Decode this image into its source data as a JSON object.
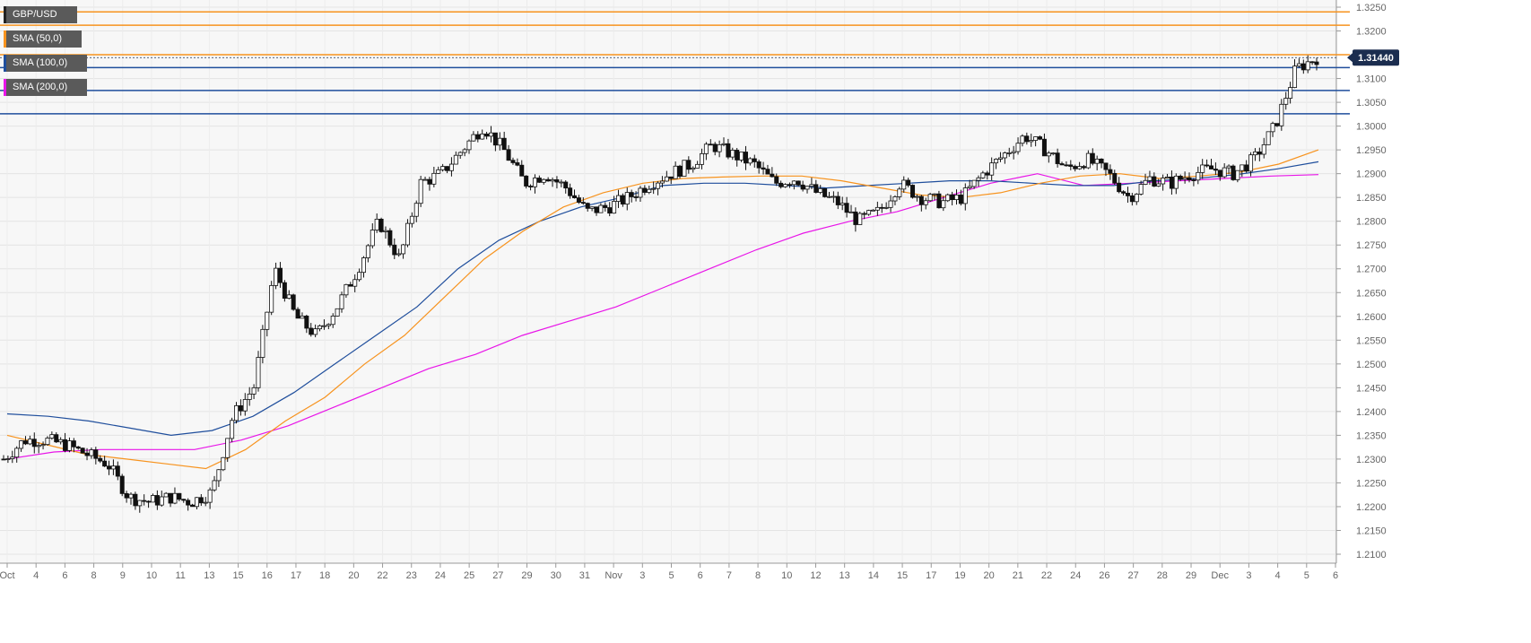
{
  "chart_data": {
    "type": "candlestick",
    "symbol": "GBP/USD",
    "legend": [
      {
        "label": "GBP/USD",
        "color": "#222222"
      },
      {
        "label": "SMA (50,0)",
        "color": "#f7931e"
      },
      {
        "label": "SMA (100,0)",
        "color": "#1f4e9c"
      },
      {
        "label": "SMA (200,0)",
        "color": "#e815e8"
      }
    ],
    "last_price_label": "1.31440",
    "last_price": 1.3144,
    "ylim": [
      1.2075,
      1.3265
    ],
    "y_ticks": [
      "1.3250",
      "1.3200",
      "1.3150",
      "1.3100",
      "1.3050",
      "1.3000",
      "1.2950",
      "1.2900",
      "1.2850",
      "1.2800",
      "1.2750",
      "1.2700",
      "1.2650",
      "1.2600",
      "1.2550",
      "1.2500",
      "1.2450",
      "1.2400",
      "1.2350",
      "1.2300",
      "1.2250",
      "1.2200",
      "1.2150",
      "1.2100"
    ],
    "x_ticks": [
      "Oct",
      "4",
      "6",
      "8",
      "9",
      "10",
      "11",
      "13",
      "15",
      "16",
      "17",
      "18",
      "20",
      "22",
      "23",
      "24",
      "25",
      "27",
      "29",
      "30",
      "31",
      "Nov",
      "3",
      "5",
      "6",
      "7",
      "8",
      "10",
      "12",
      "13",
      "14",
      "15",
      "17",
      "19",
      "20",
      "21",
      "22",
      "24",
      "26",
      "27",
      "28",
      "29",
      "Dec",
      "3",
      "4",
      "5",
      "6"
    ],
    "horizontal_levels": [
      {
        "value": 1.324,
        "color": "#f7931e"
      },
      {
        "value": 1.3212,
        "color": "#f7931e"
      },
      {
        "value": 1.315,
        "color": "#f7931e"
      },
      {
        "value": 1.3123,
        "color": "#1f4e9c"
      },
      {
        "value": 1.3075,
        "color": "#1f4e9c"
      },
      {
        "value": 1.3026,
        "color": "#1f4e9c"
      }
    ],
    "price_path": [
      1.23,
      1.234,
      1.234,
      1.233,
      1.231,
      1.229,
      1.222,
      1.221,
      1.222,
      1.221,
      1.223,
      1.239,
      1.245,
      1.27,
      1.26,
      1.256,
      1.262,
      1.27,
      1.28,
      1.272,
      1.288,
      1.29,
      1.295,
      1.3,
      1.295,
      1.288,
      1.29,
      1.287,
      1.282,
      1.283,
      1.285,
      1.288,
      1.29,
      1.292,
      1.296,
      1.294,
      1.292,
      1.288,
      1.289,
      1.286,
      1.284,
      1.28,
      1.282,
      1.288,
      1.285,
      1.284,
      1.285,
      1.29,
      1.294,
      1.298,
      1.295,
      1.291,
      1.293,
      1.29,
      1.285,
      1.289,
      1.288,
      1.29,
      1.291,
      1.29,
      1.293,
      1.3,
      1.312,
      1.3144
    ],
    "sma50": [
      1.235,
      1.233,
      1.231,
      1.23,
      1.229,
      1.228,
      1.232,
      1.238,
      1.243,
      1.25,
      1.256,
      1.264,
      1.272,
      1.278,
      1.283,
      1.286,
      1.288,
      1.289,
      1.2893,
      1.2895,
      1.2895,
      1.2885,
      1.287,
      1.2855,
      1.285,
      1.286,
      1.288,
      1.2895,
      1.29,
      1.289,
      1.2895,
      1.2903,
      1.292,
      1.295
    ],
    "sma100": [
      1.2395,
      1.239,
      1.238,
      1.2365,
      1.235,
      1.236,
      1.239,
      1.244,
      1.25,
      1.256,
      1.262,
      1.27,
      1.276,
      1.28,
      1.283,
      1.285,
      1.2875,
      1.288,
      1.288,
      1.2875,
      1.287,
      1.2875,
      1.288,
      1.2885,
      1.2885,
      1.288,
      1.2875,
      1.2875,
      1.2885,
      1.289,
      1.2898,
      1.291,
      1.2925
    ],
    "sma200": [
      1.23,
      1.2315,
      1.232,
      1.232,
      1.232,
      1.234,
      1.237,
      1.241,
      1.245,
      1.249,
      1.252,
      1.256,
      1.259,
      1.262,
      1.266,
      1.27,
      1.274,
      1.2775,
      1.28,
      1.282,
      1.285,
      1.288,
      1.29,
      1.2875,
      1.288,
      1.2885,
      1.289,
      1.2895,
      1.2898
    ]
  }
}
